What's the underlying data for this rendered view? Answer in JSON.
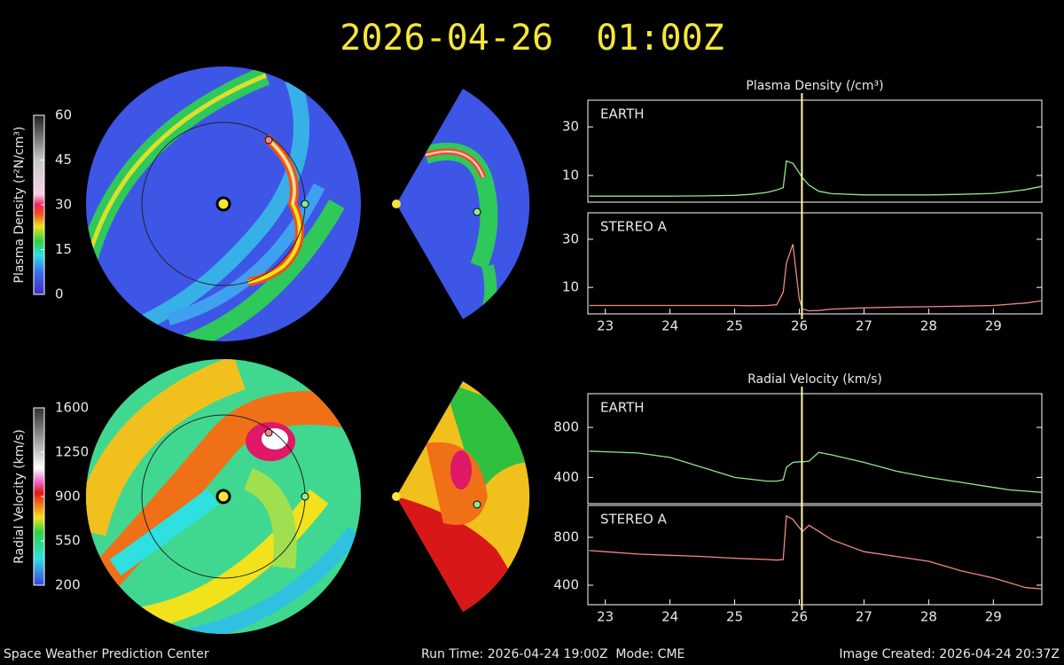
{
  "title": "2026-04-26  01:00Z",
  "footer": {
    "left": "Space Weather Prediction Center",
    "center": "Run Time: 2026-04-24 19:00Z  Mode: CME",
    "right": "Image Created: 2026-04-24 20:37Z"
  },
  "chart_data": [
    {
      "type": "colorbar",
      "ylabel": "Plasma Density (r²N/cm³)",
      "ylim": [
        0,
        60
      ],
      "yticks": [
        0,
        15,
        30,
        45,
        60
      ]
    },
    {
      "type": "colorbar",
      "ylabel": "Radial Velocity (km/s)",
      "ylim": [
        200,
        1600
      ],
      "yticks": [
        200,
        550,
        900,
        1250,
        1600
      ]
    },
    {
      "type": "line",
      "title": "Plasma Density (/cm³)",
      "x": [
        22.75,
        23,
        23.5,
        24,
        24.5,
        25,
        25.25,
        25.5,
        25.65,
        25.75,
        25.8,
        25.9,
        26,
        26.05,
        26.15,
        26.3,
        26.5,
        27,
        27.5,
        28,
        28.5,
        29,
        29.25,
        29.5,
        29.75
      ],
      "series": [
        {
          "name": "EARTH",
          "color": "#90e890",
          "values": [
            1.5,
            1.5,
            1.5,
            1.5,
            1.6,
            1.8,
            2.2,
            3,
            4,
            5,
            16,
            15,
            11,
            9,
            6,
            3.5,
            2.5,
            2,
            2,
            2,
            2.2,
            2.6,
            3.3,
            4.2,
            5.5
          ]
        }
      ],
      "xlim": [
        22.73,
        29.75
      ],
      "ylim": [
        -1,
        41
      ],
      "yticks": [
        10,
        30
      ],
      "cursor_x": 26.04
    },
    {
      "type": "line",
      "x": [
        22.75,
        23,
        23.5,
        24,
        24.5,
        25,
        25.25,
        25.5,
        25.65,
        25.75,
        25.8,
        25.9,
        26,
        26.05,
        26.15,
        26.3,
        26.5,
        27,
        27.5,
        28,
        28.5,
        29,
        29.25,
        29.5,
        29.75
      ],
      "series": [
        {
          "name": "STEREO A",
          "color": "#f08a80",
          "values": [
            2.5,
            2.5,
            2.5,
            2.5,
            2.5,
            2.5,
            2.4,
            2.5,
            2.8,
            8,
            20,
            28,
            5,
            1,
            0.3,
            0.4,
            1,
            1.5,
            1.8,
            2,
            2.2,
            2.5,
            3,
            3.5,
            4.5
          ]
        }
      ],
      "xlim": [
        22.73,
        29.75
      ],
      "ylim": [
        -1,
        41
      ],
      "yticks": [
        10,
        30
      ],
      "xticks": [
        23,
        24,
        25,
        26,
        27,
        28,
        29
      ],
      "cursor_x": 26.04
    },
    {
      "type": "line",
      "title": "Radial Velocity (km/s)",
      "x": [
        22.75,
        23,
        23.5,
        24,
        24.5,
        25,
        25.25,
        25.5,
        25.65,
        25.75,
        25.8,
        25.9,
        26,
        26.05,
        26.15,
        26.3,
        26.5,
        27,
        27.5,
        28,
        28.5,
        29,
        29.25,
        29.5,
        29.75
      ],
      "series": [
        {
          "name": "EARTH",
          "color": "#90e890",
          "values": [
            610,
            605,
            595,
            560,
            480,
            400,
            385,
            370,
            370,
            380,
            480,
            520,
            525,
            525,
            530,
            600,
            580,
            520,
            450,
            400,
            360,
            320,
            300,
            290,
            280
          ]
        }
      ],
      "xlim": [
        22.73,
        29.75
      ],
      "ylim": [
        190,
        1070
      ],
      "yticks": [
        400,
        800
      ],
      "cursor_x": 26.04
    },
    {
      "type": "line",
      "x": [
        22.75,
        23,
        23.5,
        24,
        24.5,
        25,
        25.25,
        25.5,
        25.65,
        25.75,
        25.8,
        25.9,
        26,
        26.05,
        26.15,
        26.3,
        26.5,
        27,
        27.5,
        28,
        28.5,
        29,
        29.25,
        29.5,
        29.75
      ],
      "series": [
        {
          "name": "STEREO A",
          "color": "#f08a80",
          "values": [
            690,
            680,
            660,
            650,
            640,
            625,
            620,
            615,
            610,
            615,
            980,
            950,
            880,
            850,
            900,
            850,
            780,
            680,
            640,
            600,
            520,
            460,
            420,
            380,
            370
          ]
        }
      ],
      "xlim": [
        22.73,
        29.75
      ],
      "ylim": [
        237,
        1067
      ],
      "yticks": [
        400,
        800
      ],
      "xticks": [
        23,
        24,
        25,
        26,
        27,
        28,
        29
      ],
      "cursor_x": 26.04
    }
  ]
}
